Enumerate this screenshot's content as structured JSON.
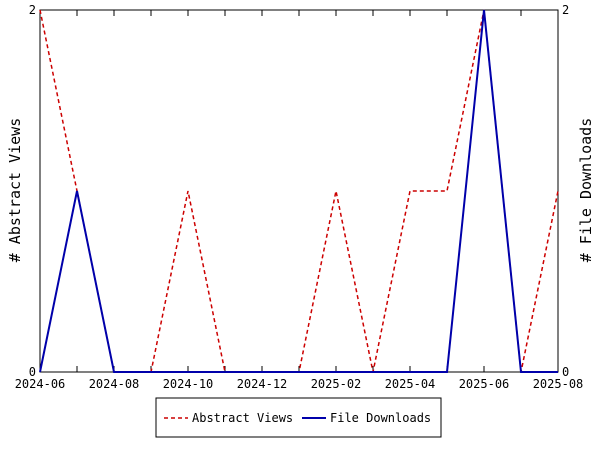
{
  "chart_data": {
    "type": "line",
    "x": [
      "2024-06",
      "2024-07",
      "2024-08",
      "2024-09",
      "2024-10",
      "2024-11",
      "2024-12",
      "2025-01",
      "2025-02",
      "2025-03",
      "2025-04",
      "2025-05",
      "2025-06",
      "2025-07",
      "2025-08"
    ],
    "x_tick_labels": [
      "2024-06",
      "2024-08",
      "2024-10",
      "2024-12",
      "2025-02",
      "2025-04",
      "2025-06",
      "2025-08"
    ],
    "ylabel_left": "# Abstract Views",
    "ylabel_right": "# File Downloads",
    "ylim_left": [
      0,
      2
    ],
    "ylim_right": [
      0,
      2
    ],
    "y_ticks_left": [
      "0",
      "2"
    ],
    "y_ticks_right": [
      "0",
      "2"
    ],
    "grid": false,
    "legend_position": "bottom",
    "series": [
      {
        "name": "Abstract Views",
        "axis": "left",
        "style": "dashed",
        "color": "#cc0000",
        "values": [
          2,
          1,
          0,
          0,
          1,
          0,
          0,
          0,
          1,
          0,
          1,
          1,
          2,
          0,
          1
        ]
      },
      {
        "name": "File Downloads",
        "axis": "right",
        "style": "solid",
        "color": "#0000aa",
        "values": [
          0,
          1,
          0,
          0,
          0,
          0,
          0,
          0,
          0,
          0,
          0,
          0,
          2,
          0,
          0
        ]
      }
    ]
  }
}
